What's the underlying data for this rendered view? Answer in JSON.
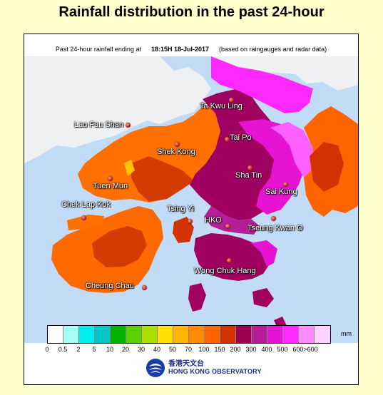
{
  "page": {
    "title": "Rainfall distribution in the past 24-hour"
  },
  "map": {
    "subtitle_prefix": "Past 24-hour rainfall ending at",
    "timestamp": "18:15H 18-Jul-2017",
    "subtitle_suffix": "(based on raingauges and radar data)",
    "stations": [
      {
        "id": "ta-kwu-ling",
        "name": "Ta Kwu Ling"
      },
      {
        "id": "lau-fau-shan",
        "name": "Lau Fau Shan"
      },
      {
        "id": "tai-po",
        "name": "Tai Po"
      },
      {
        "id": "shek-kong",
        "name": "Shek Kong"
      },
      {
        "id": "sha-tin",
        "name": "Sha Tin"
      },
      {
        "id": "tuen-mun",
        "name": "Tuen Mun"
      },
      {
        "id": "sai-kung",
        "name": "Sai Kung"
      },
      {
        "id": "chek-lap-kok",
        "name": "Chek Lap Kok"
      },
      {
        "id": "tsing-yi",
        "name": "Tsing Yi"
      },
      {
        "id": "hko",
        "name": "HKO"
      },
      {
        "id": "tseung-kwan-o",
        "name": "Tseung Kwan O"
      },
      {
        "id": "wong-chuk-hang",
        "name": "Wong Chuk Hang"
      },
      {
        "id": "cheung-chau",
        "name": "Cheung Chau"
      }
    ]
  },
  "legend": {
    "unit": "mm",
    "colors": [
      "#ffffff",
      "#a6fff5",
      "#00eef0",
      "#00c8c8",
      "#00b400",
      "#5ad000",
      "#a8e000",
      "#ffe000",
      "#ffb400",
      "#ff8c00",
      "#ff6400",
      "#d23200",
      "#a00050",
      "#b41e96",
      "#e614d2",
      "#ff28ff",
      "#ff8cff",
      "#ffd2ff"
    ],
    "ticks": [
      "0",
      "0.5",
      "2",
      "5",
      "10",
      "20",
      "30",
      "40",
      "50",
      "70",
      "100",
      "150",
      "200",
      "300",
      "400",
      "500",
      "600>600"
    ]
  },
  "logo": {
    "chinese": "香港天文台",
    "english": "HONG KONG OBSERVATORY"
  }
}
